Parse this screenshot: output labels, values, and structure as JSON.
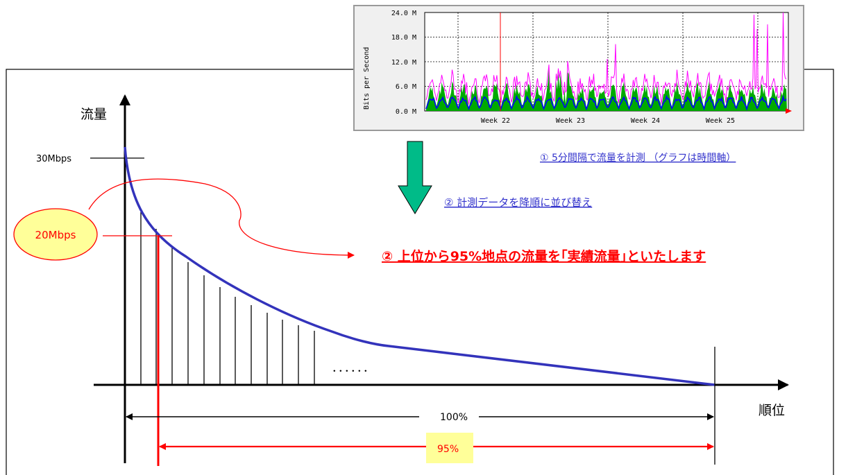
{
  "y_axis_label": "流量",
  "x_axis_label": "順位",
  "peak_label": "30Mbps",
  "marker_label": "20Mbps",
  "full_range_label": "100%",
  "percentile_label": "95%",
  "ellipsis": "．．．．．．",
  "steps": {
    "step1": "① 5分間隔で流量を計測 （グラフは時間軸）",
    "step2": "② 計測データを降順に並び替え",
    "step3": "② 上位から95%地点の流量を｢実績流量｣といたします"
  },
  "colors": {
    "curve": "#3333bb",
    "highlight": "#ff0000",
    "label_fill": "#ffff99",
    "link_text": "#3333cc",
    "arrow_green": "#00bb88"
  },
  "mrtg_graph": {
    "ylabel": "Bits per Second",
    "y_ticks": [
      "24.0 M",
      "18.0 M",
      "12.0 M",
      "6.0 M",
      "0.0 M"
    ],
    "x_ticks": [
      "Week 22",
      "Week 23",
      "Week 24",
      "Week 25"
    ]
  }
}
